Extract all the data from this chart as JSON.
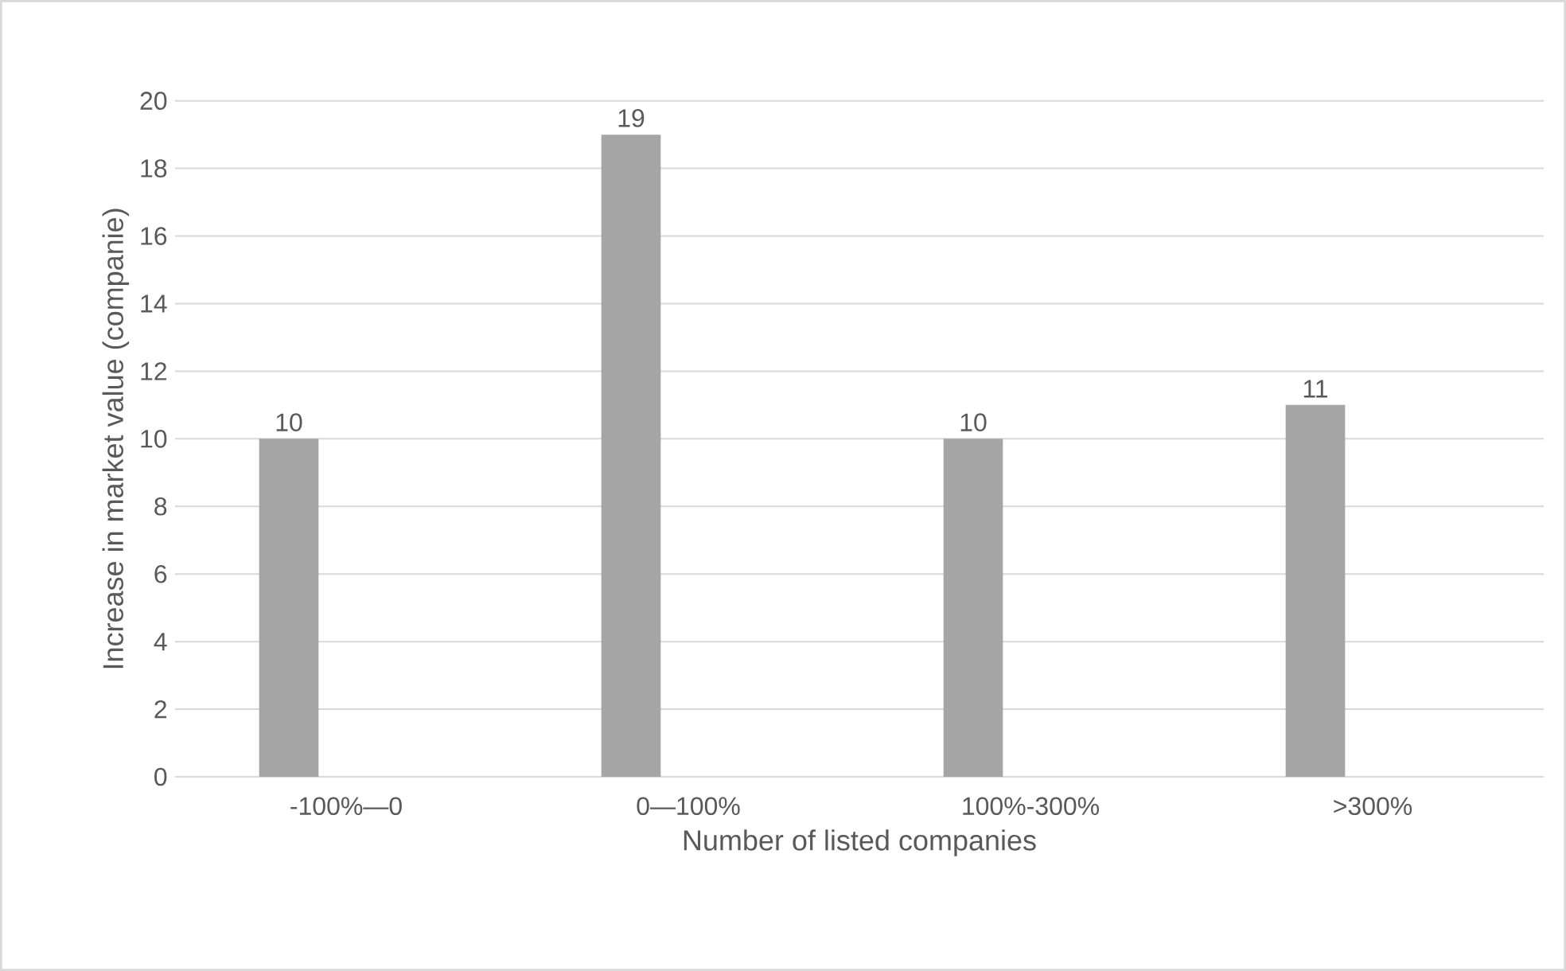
{
  "chart_data": {
    "type": "bar",
    "xlabel": "Number of listed companies",
    "ylabel": "Increase in market value (companie)",
    "categories": [
      "-100%—0",
      "0—100%",
      "100%-300%",
      ">300%"
    ],
    "values": [
      10,
      19,
      10,
      11
    ],
    "color": "#a5a5a5",
    "data_labels": true,
    "ylim": [
      0,
      20
    ],
    "yticks": [
      0,
      2,
      4,
      6,
      8,
      10,
      12,
      14,
      16,
      18,
      20
    ],
    "grid": "y"
  }
}
